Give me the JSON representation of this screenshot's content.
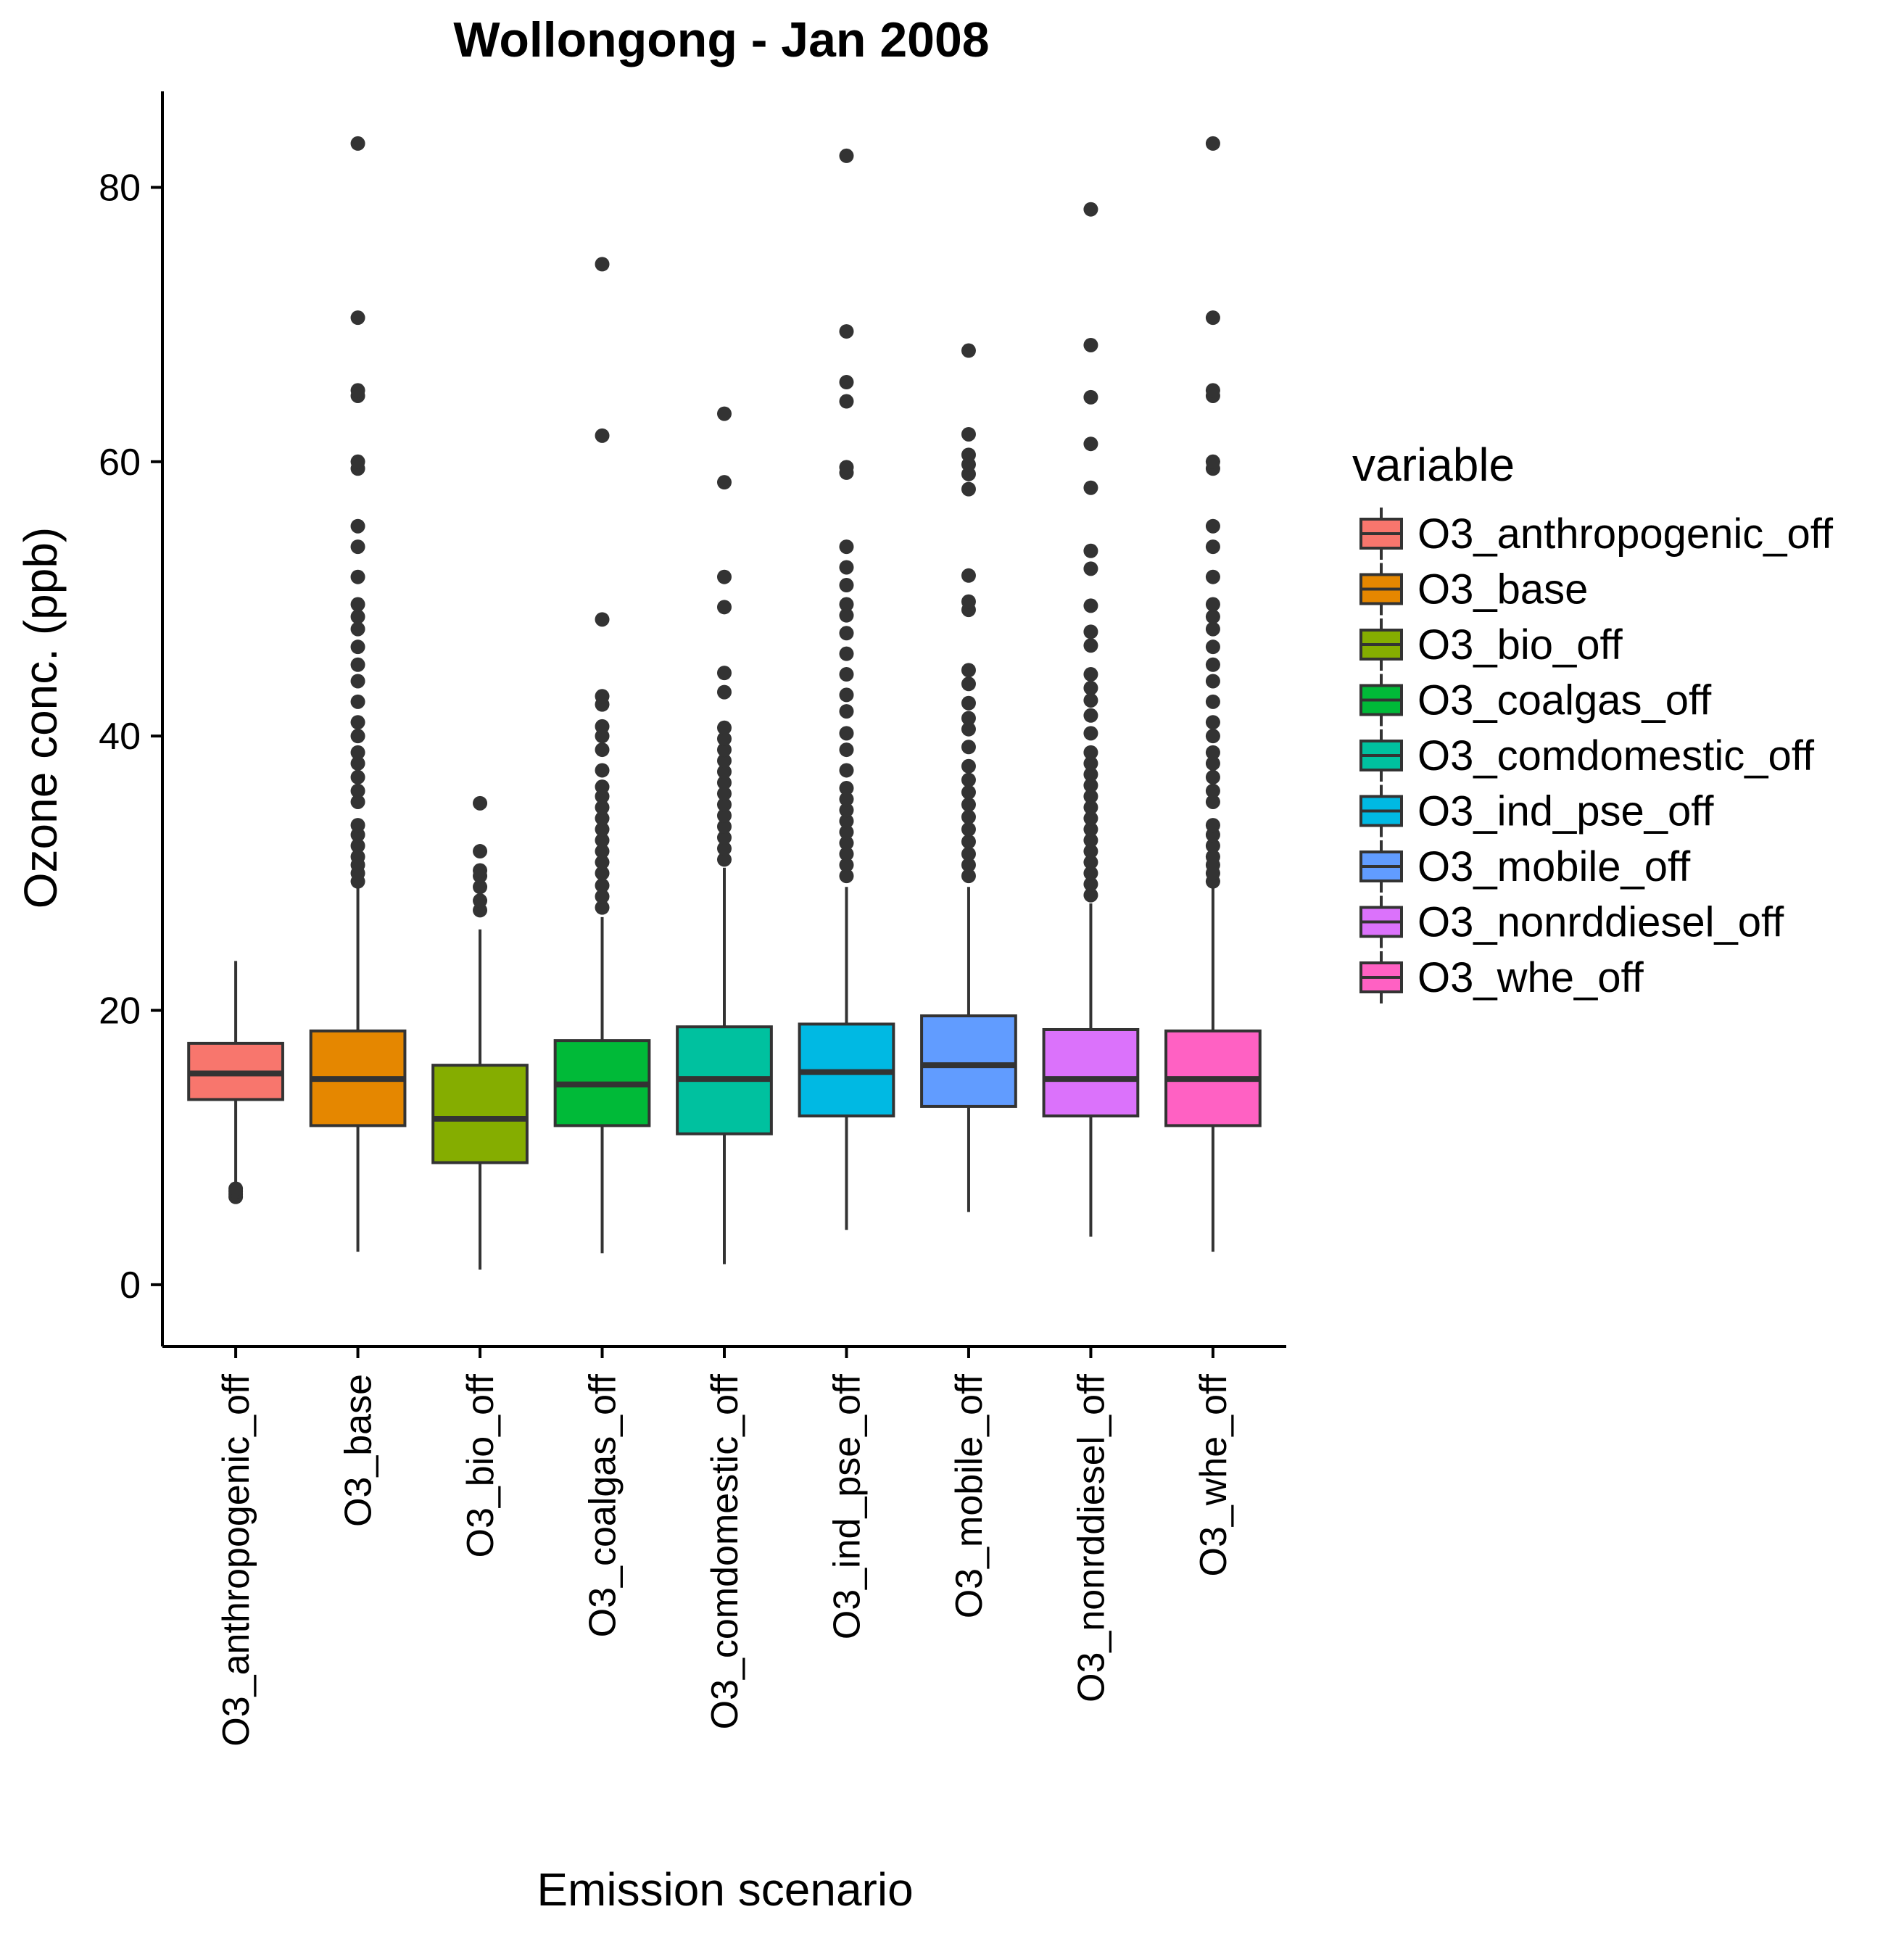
{
  "chart_data": {
    "type": "boxplot",
    "title": "Wollongong  -  Jan 2008",
    "xlabel": "Emission scenario",
    "ylabel": "Ozone conc. (ppb)",
    "ylim": [
      -4.5,
      87
    ],
    "yticks": [
      0,
      20,
      40,
      60,
      80
    ],
    "legend_title": "variable",
    "legend_position": "right",
    "grid": false,
    "series": [
      {
        "name": "O3_anthropogenic_off",
        "color": "#F8766D",
        "q1": 13.5,
        "median": 15.4,
        "q3": 17.6,
        "whisker_low": 7.1,
        "whisker_high": 23.6,
        "outliers": [
          6.4,
          6.6,
          6.8,
          7.0
        ]
      },
      {
        "name": "O3_base",
        "color": "#E58700",
        "q1": 11.6,
        "median": 15.0,
        "q3": 18.5,
        "whisker_low": 2.4,
        "whisker_high": 28.9,
        "outliers": [
          29.4,
          30.0,
          30.6,
          31.2,
          32.0,
          32.8,
          33.5,
          35.2,
          36.0,
          37.0,
          38.0,
          38.8,
          40.0,
          41.0,
          42.5,
          44.0,
          45.2,
          46.5,
          47.8,
          48.7,
          49.6,
          51.6,
          53.8,
          55.3,
          59.5,
          60.0,
          64.8,
          65.2,
          70.5,
          83.2
        ]
      },
      {
        "name": "O3_bio_off",
        "color": "#85AD00",
        "q1": 8.9,
        "median": 12.1,
        "q3": 16.0,
        "whisker_low": 1.1,
        "whisker_high": 25.9,
        "outliers": [
          27.3,
          28.0,
          29.0,
          29.8,
          30.2,
          31.6,
          35.1
        ]
      },
      {
        "name": "O3_coalgas_off",
        "color": "#00BA38",
        "q1": 11.6,
        "median": 14.6,
        "q3": 17.8,
        "whisker_low": 2.3,
        "whisker_high": 26.8,
        "outliers": [
          27.5,
          28.3,
          29.1,
          30.0,
          30.8,
          31.6,
          32.4,
          33.2,
          34.0,
          34.8,
          35.6,
          36.3,
          37.5,
          39.0,
          40.0,
          40.7,
          42.3,
          42.9,
          48.5,
          61.9,
          74.4
        ]
      },
      {
        "name": "O3_comdomestic_off",
        "color": "#00C19F",
        "q1": 11.0,
        "median": 15.0,
        "q3": 18.8,
        "whisker_low": 1.5,
        "whisker_high": 30.4,
        "outliers": [
          31.0,
          31.8,
          32.6,
          33.4,
          34.2,
          35.0,
          35.8,
          36.6,
          37.4,
          38.2,
          39.0,
          39.8,
          40.6,
          43.2,
          44.6,
          49.4,
          51.6,
          58.5,
          63.5
        ]
      },
      {
        "name": "O3_ind_pse_off",
        "color": "#00B9E3",
        "q1": 12.3,
        "median": 15.5,
        "q3": 19.0,
        "whisker_low": 4.0,
        "whisker_high": 29.0,
        "outliers": [
          29.8,
          30.6,
          31.4,
          32.2,
          33.0,
          33.8,
          34.6,
          35.4,
          36.2,
          37.5,
          39.0,
          40.2,
          41.8,
          43.0,
          44.5,
          46.0,
          47.5,
          48.8,
          49.6,
          51.0,
          52.3,
          53.8,
          59.2,
          59.6,
          64.4,
          65.8,
          69.5,
          82.3
        ]
      },
      {
        "name": "O3_mobile_off",
        "color": "#619CFF",
        "q1": 13.0,
        "median": 16.0,
        "q3": 19.6,
        "whisker_low": 5.3,
        "whisker_high": 29.0,
        "outliers": [
          29.8,
          30.6,
          31.4,
          32.3,
          33.2,
          34.1,
          35.0,
          35.9,
          36.8,
          37.8,
          39.2,
          40.5,
          41.3,
          42.4,
          43.8,
          44.8,
          49.2,
          49.8,
          51.7,
          58.0,
          59.1,
          59.8,
          60.5,
          62.0,
          68.1
        ]
      },
      {
        "name": "O3_nonrddiesel_off",
        "color": "#DB72FB",
        "q1": 12.3,
        "median": 15.0,
        "q3": 18.6,
        "whisker_low": 3.5,
        "whisker_high": 27.8,
        "outliers": [
          28.4,
          29.2,
          30.0,
          30.8,
          31.6,
          32.4,
          33.2,
          34.0,
          34.8,
          35.6,
          36.4,
          37.2,
          38.0,
          38.8,
          40.2,
          41.5,
          42.6,
          43.5,
          44.5,
          46.6,
          47.6,
          49.5,
          52.2,
          53.5,
          58.1,
          61.3,
          64.7,
          68.5,
          78.4
        ]
      },
      {
        "name": "O3_whe_off",
        "color": "#FF61C3",
        "q1": 11.6,
        "median": 15.0,
        "q3": 18.5,
        "whisker_low": 2.4,
        "whisker_high": 28.9,
        "outliers": [
          29.4,
          30.0,
          30.6,
          31.2,
          32.0,
          32.8,
          33.5,
          35.2,
          36.0,
          37.0,
          38.0,
          38.8,
          40.0,
          41.0,
          42.5,
          44.0,
          45.2,
          46.5,
          47.8,
          48.7,
          49.6,
          51.6,
          53.8,
          55.3,
          59.5,
          60.0,
          64.8,
          65.2,
          70.5,
          83.2
        ]
      }
    ]
  }
}
